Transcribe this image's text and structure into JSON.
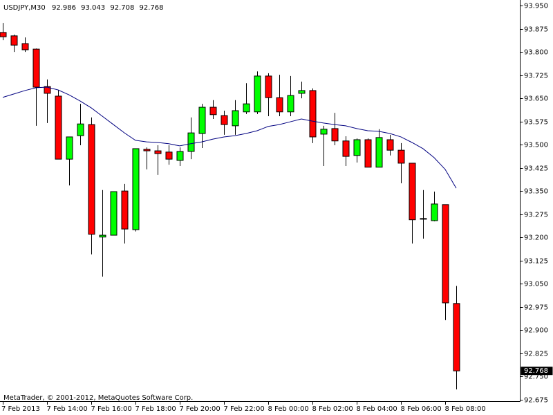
{
  "chart_data": {
    "type": "candlestick",
    "title": "USDJPY,M30",
    "footer": "MetaTrader, © 2001-2012, MetaQuotes Software Corp.",
    "categories": [
      "7 Feb 2013",
      null,
      null,
      null,
      "7 Feb 14:00",
      null,
      null,
      null,
      "7 Feb 16:00",
      null,
      null,
      null,
      "7 Feb 18:00",
      null,
      null,
      null,
      "7 Feb 20:00",
      null,
      null,
      null,
      "7 Feb 22:00",
      null,
      null,
      null,
      "8 Feb 00:00",
      null,
      null,
      null,
      "8 Feb 02:00",
      null,
      null,
      null,
      "8 Feb 04:00",
      null,
      null,
      null,
      "8 Feb 06:00",
      null,
      null,
      null,
      "8 Feb 08:00",
      null
    ],
    "open": [
      93.863,
      93.852,
      93.827,
      93.809,
      93.688,
      93.657,
      93.453,
      93.529,
      93.565,
      93.201,
      93.207,
      93.35,
      93.225,
      93.485,
      93.48,
      93.476,
      93.449,
      93.478,
      93.536,
      93.621,
      93.594,
      93.561,
      93.606,
      93.606,
      93.722,
      93.652,
      93.606,
      93.666,
      93.675,
      93.534,
      93.552,
      93.512,
      93.465,
      93.516,
      93.427,
      93.516,
      93.482,
      93.44,
      93.261,
      93.254,
      93.306,
      92.986
    ],
    "high": [
      93.894,
      93.856,
      93.847,
      93.811,
      93.711,
      93.677,
      93.525,
      93.632,
      93.588,
      93.353,
      93.348,
      93.373,
      93.487,
      93.491,
      93.498,
      93.498,
      93.491,
      93.588,
      93.632,
      93.644,
      93.61,
      93.644,
      93.699,
      93.737,
      93.731,
      93.726,
      93.722,
      93.704,
      93.682,
      93.561,
      93.603,
      93.527,
      93.52,
      93.52,
      93.55,
      93.532,
      93.505,
      93.44,
      93.353,
      93.348,
      93.306,
      93.043
    ],
    "low": [
      93.838,
      93.8,
      93.8,
      93.561,
      93.57,
      93.453,
      93.368,
      93.498,
      93.145,
      93.073,
      93.207,
      93.18,
      93.219,
      93.42,
      93.402,
      93.435,
      93.431,
      93.453,
      93.489,
      93.583,
      93.532,
      93.532,
      93.599,
      93.599,
      93.592,
      93.592,
      93.592,
      93.65,
      93.505,
      93.431,
      93.498,
      93.431,
      93.442,
      93.427,
      93.427,
      93.465,
      93.375,
      93.18,
      93.196,
      93.252,
      92.932,
      92.708
    ],
    "close": [
      93.849,
      93.822,
      93.807,
      93.686,
      93.666,
      93.453,
      93.525,
      93.567,
      93.21,
      93.207,
      93.348,
      93.227,
      93.487,
      93.48,
      93.471,
      93.453,
      93.478,
      93.538,
      93.621,
      93.597,
      93.565,
      93.61,
      93.632,
      93.722,
      93.652,
      93.606,
      93.659,
      93.675,
      93.525,
      93.55,
      93.512,
      93.462,
      93.516,
      93.427,
      93.523,
      93.482,
      93.44,
      93.257,
      93.261,
      93.308,
      92.988,
      92.768
    ],
    "up_color": "#00ff00",
    "down_color": "#ff0000",
    "wick_color": "#000000",
    "moving_average": {
      "color": "#000080",
      "values": [
        93.653,
        93.664,
        93.675,
        93.684,
        93.686,
        93.677,
        93.661,
        93.641,
        93.619,
        93.592,
        93.565,
        93.538,
        93.514,
        93.509,
        93.507,
        93.503,
        93.496,
        93.503,
        93.509,
        93.518,
        93.525,
        93.529,
        93.536,
        93.545,
        93.559,
        93.565,
        93.574,
        93.583,
        93.576,
        93.57,
        93.565,
        93.561,
        93.552,
        93.545,
        93.543,
        93.536,
        93.525,
        93.507,
        93.487,
        93.458,
        93.42,
        93.359
      ]
    },
    "last_price": 92.768,
    "ylim": [
      92.67,
      93.968
    ],
    "yticks": [
      {
        "value": 93.95,
        "label": "93.950"
      },
      {
        "value": 93.875,
        "label": "93.875"
      },
      {
        "value": 93.8,
        "label": "93.800"
      },
      {
        "value": 93.725,
        "label": "93.725"
      },
      {
        "value": 93.65,
        "label": "93.650"
      },
      {
        "value": 93.575,
        "label": "93.575"
      },
      {
        "value": 93.5,
        "label": "93.500"
      },
      {
        "value": 93.425,
        "label": "93.425"
      },
      {
        "value": 93.35,
        "label": "93.350"
      },
      {
        "value": 93.275,
        "label": "93.275"
      },
      {
        "value": 93.2,
        "label": "93.200"
      },
      {
        "value": 93.125,
        "label": "93.125"
      },
      {
        "value": 93.05,
        "label": "93.050"
      },
      {
        "value": 92.975,
        "label": "92.975"
      },
      {
        "value": 92.9,
        "label": "92.900"
      },
      {
        "value": 92.825,
        "label": "92.825"
      },
      {
        "value": 92.75,
        "label": "92.750"
      },
      {
        "value": 92.675,
        "label": "92.675"
      }
    ],
    "grid": false
  }
}
